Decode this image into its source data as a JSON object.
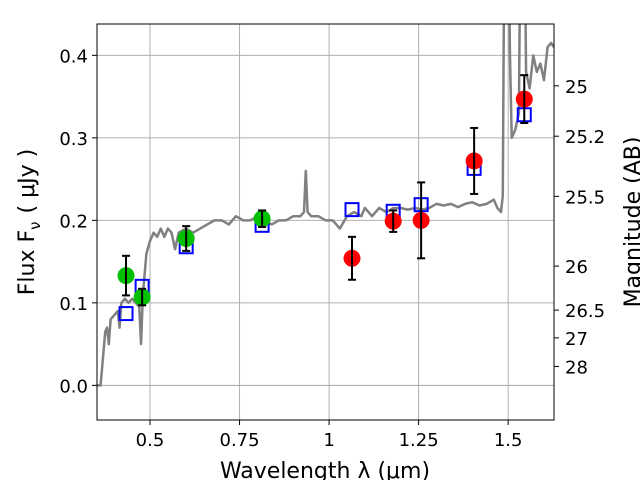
{
  "chart_data": {
    "type": "scatter",
    "title": "",
    "xlabel": "Wavelength  λ (μm)",
    "ylabel": "Flux  F",
    "ylabel_sub": "ν",
    "ylabel_unit": "( μJy )",
    "y2label": "Magnitude (AB)",
    "xlim": [
      0.352,
      1.628
    ],
    "ylim": [
      -0.042,
      0.438
    ],
    "grid": true,
    "x_ticks": [
      {
        "v": 0.5,
        "label": "0.5"
      },
      {
        "v": 0.75,
        "label": "0.75"
      },
      {
        "v": 1.0,
        "label": "1"
      },
      {
        "v": 1.25,
        "label": "1.25"
      },
      {
        "v": 1.5,
        "label": "1.5"
      }
    ],
    "y_ticks": [
      {
        "v": 0.0,
        "label": "0.0"
      },
      {
        "v": 0.1,
        "label": "0.1"
      },
      {
        "v": 0.2,
        "label": "0.2"
      },
      {
        "v": 0.3,
        "label": "0.3"
      },
      {
        "v": 0.4,
        "label": "0.4"
      }
    ],
    "y2_ticks": [
      {
        "mag": 25,
        "label": "25"
      },
      {
        "mag": 25.2,
        "label": "25.2"
      },
      {
        "mag": 25.5,
        "label": "25.5"
      },
      {
        "mag": 26,
        "label": "26"
      },
      {
        "mag": 26.5,
        "label": "26.5"
      },
      {
        "mag": 27,
        "label": "27"
      },
      {
        "mag": 28,
        "label": "28"
      }
    ],
    "colors": {
      "spectrum": "#808080",
      "green": "#00c000",
      "red": "#ff0000",
      "model": "#0000ff",
      "grid": "#b0b0b0"
    },
    "series": [
      {
        "name": "spectrum",
        "kind": "line",
        "points": [
          [
            0.352,
            0
          ],
          [
            0.362,
            0
          ],
          [
            0.37,
            0.04
          ],
          [
            0.375,
            0.065
          ],
          [
            0.38,
            0.07
          ],
          [
            0.385,
            0.05
          ],
          [
            0.39,
            0.08
          ],
          [
            0.4,
            0.085
          ],
          [
            0.41,
            0.09
          ],
          [
            0.415,
            0.07
          ],
          [
            0.42,
            0.1
          ],
          [
            0.43,
            0.105
          ],
          [
            0.44,
            0.1
          ],
          [
            0.45,
            0.105
          ],
          [
            0.46,
            0.1
          ],
          [
            0.47,
            0.095
          ],
          [
            0.475,
            0.05
          ],
          [
            0.48,
            0.11
          ],
          [
            0.49,
            0.16
          ],
          [
            0.5,
            0.175
          ],
          [
            0.51,
            0.185
          ],
          [
            0.52,
            0.18
          ],
          [
            0.53,
            0.19
          ],
          [
            0.54,
            0.18
          ],
          [
            0.55,
            0.19
          ],
          [
            0.56,
            0.185
          ],
          [
            0.57,
            0.165
          ],
          [
            0.58,
            0.185
          ],
          [
            0.6,
            0.19
          ],
          [
            0.62,
            0.185
          ],
          [
            0.64,
            0.19
          ],
          [
            0.66,
            0.195
          ],
          [
            0.68,
            0.2
          ],
          [
            0.7,
            0.2
          ],
          [
            0.72,
            0.195
          ],
          [
            0.74,
            0.205
          ],
          [
            0.76,
            0.2
          ],
          [
            0.78,
            0.2
          ],
          [
            0.8,
            0.205
          ],
          [
            0.82,
            0.2
          ],
          [
            0.84,
            0.195
          ],
          [
            0.86,
            0.2
          ],
          [
            0.88,
            0.2
          ],
          [
            0.9,
            0.205
          ],
          [
            0.92,
            0.205
          ],
          [
            0.93,
            0.21
          ],
          [
            0.935,
            0.26
          ],
          [
            0.94,
            0.21
          ],
          [
            0.95,
            0.205
          ],
          [
            0.97,
            0.205
          ],
          [
            0.99,
            0.2
          ],
          [
            1.01,
            0.2
          ],
          [
            1.03,
            0.19
          ],
          [
            1.05,
            0.205
          ],
          [
            1.07,
            0.21
          ],
          [
            1.09,
            0.205
          ],
          [
            1.1,
            0.215
          ],
          [
            1.12,
            0.205
          ],
          [
            1.14,
            0.215
          ],
          [
            1.16,
            0.21
          ],
          [
            1.18,
            0.215
          ],
          [
            1.2,
            0.215
          ],
          [
            1.22,
            0.213
          ],
          [
            1.24,
            0.215
          ],
          [
            1.26,
            0.213
          ],
          [
            1.28,
            0.215
          ],
          [
            1.3,
            0.22
          ],
          [
            1.32,
            0.218
          ],
          [
            1.34,
            0.22
          ],
          [
            1.36,
            0.216
          ],
          [
            1.38,
            0.22
          ],
          [
            1.4,
            0.222
          ],
          [
            1.42,
            0.218
          ],
          [
            1.44,
            0.22
          ],
          [
            1.46,
            0.225
          ],
          [
            1.47,
            0.215
          ],
          [
            1.48,
            0.21
          ],
          [
            1.485,
            0.23
          ],
          [
            1.49,
            0.6
          ],
          [
            1.5,
            0.6
          ],
          [
            1.505,
            0.4
          ],
          [
            1.51,
            0.3
          ],
          [
            1.52,
            0.31
          ],
          [
            1.53,
            0.33
          ],
          [
            1.535,
            0.6
          ],
          [
            1.545,
            0.6
          ],
          [
            1.55,
            0.38
          ],
          [
            1.56,
            0.36
          ],
          [
            1.57,
            0.4
          ],
          [
            1.58,
            0.38
          ],
          [
            1.59,
            0.39
          ],
          [
            1.6,
            0.37
          ],
          [
            1.61,
            0.41
          ],
          [
            1.62,
            0.415
          ],
          [
            1.628,
            0.41
          ]
        ]
      },
      {
        "name": "model-photometry",
        "kind": "square",
        "points": [
          [
            0.433,
            0.087
          ],
          [
            0.478,
            0.12
          ],
          [
            0.601,
            0.168
          ],
          [
            0.813,
            0.194
          ],
          [
            1.064,
            0.213
          ],
          [
            1.179,
            0.211
          ],
          [
            1.257,
            0.219
          ],
          [
            1.405,
            0.263
          ],
          [
            1.545,
            0.328
          ]
        ]
      },
      {
        "name": "green-photometry",
        "kind": "circle-errorbar",
        "points": [
          [
            0.433,
            0.133,
            0.024
          ],
          [
            0.478,
            0.107,
            0.01
          ],
          [
            0.601,
            0.178,
            0.015
          ],
          [
            0.813,
            0.202,
            0.01
          ]
        ]
      },
      {
        "name": "red-photometry",
        "kind": "circle-errorbar",
        "points": [
          [
            1.064,
            0.154,
            0.026
          ],
          [
            1.179,
            0.199,
            0.013
          ],
          [
            1.257,
            0.2,
            0.046
          ],
          [
            1.405,
            0.272,
            0.04
          ],
          [
            1.545,
            0.347,
            0.029
          ]
        ]
      }
    ]
  }
}
